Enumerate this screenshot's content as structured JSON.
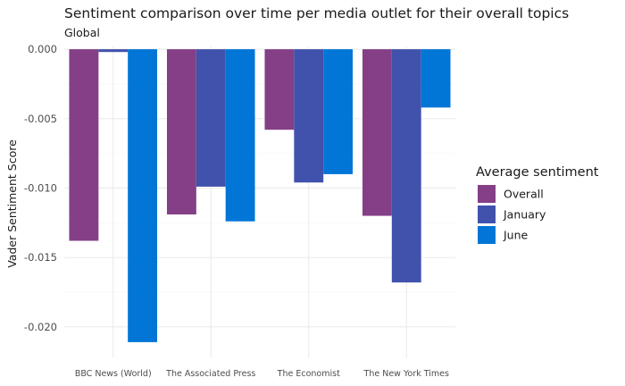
{
  "chart_data": {
    "type": "bar",
    "title": "Sentiment comparison over time per media outlet for their overall topics",
    "subtitle": "Global",
    "xlabel": "",
    "ylabel": "Vader Sentiment Score",
    "categories": [
      "BBC News (World)",
      "The Associated Press",
      "The Economist",
      "The New York Times"
    ],
    "series": [
      {
        "name": "Overall",
        "color": "#843f87",
        "values": [
          -0.0138,
          -0.0119,
          -0.0058,
          -0.012
        ]
      },
      {
        "name": "January",
        "color": "#4152ad",
        "values": [
          -0.0002,
          -0.0099,
          -0.0096,
          -0.0168
        ]
      },
      {
        "name": "June",
        "color": "#0276d6",
        "values": [
          -0.0211,
          -0.0124,
          -0.009,
          -0.0042
        ]
      }
    ],
    "ylim": [
      -0.0222,
      0.0002
    ],
    "yticks": [
      0.0,
      -0.005,
      -0.01,
      -0.015,
      -0.02
    ],
    "ytick_labels": [
      "0.000",
      "-0.005",
      "-0.010",
      "-0.015",
      "-0.020"
    ],
    "grid": true,
    "legend": {
      "title": "Average sentiment",
      "position": "right"
    }
  }
}
